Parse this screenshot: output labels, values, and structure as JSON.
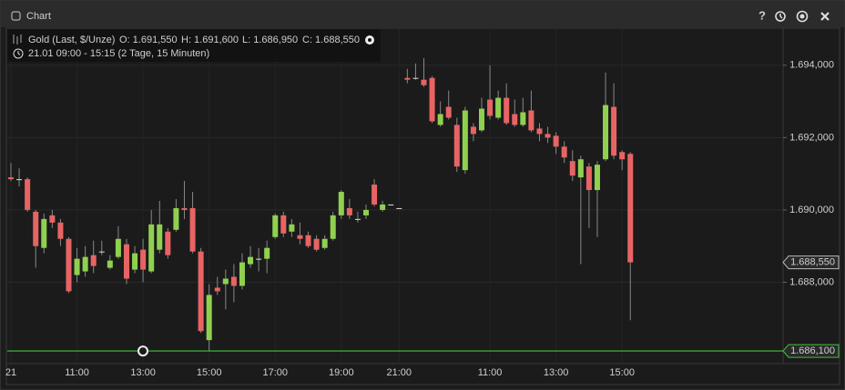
{
  "window": {
    "title": "Chart",
    "help": "?"
  },
  "chart_data": {
    "type": "candlestick",
    "instrument": "Gold (Last, $/Unze)",
    "ohlc": [
      "O: 1.691,550",
      "H: 1.691,600",
      "L: 1.686,950",
      "C: 1.688,550"
    ],
    "range": "21.01 09:00 - 15:15 (2 Tage, 15 Minuten)",
    "categories": [
      "21",
      null,
      null,
      null,
      null,
      null,
      null,
      null,
      "11:00",
      null,
      null,
      null,
      null,
      null,
      null,
      null,
      "13:00",
      null,
      null,
      null,
      null,
      null,
      null,
      null,
      "15:00",
      null,
      null,
      null,
      null,
      null,
      null,
      null,
      "17:00",
      null,
      null,
      null,
      null,
      null,
      null,
      null,
      "19:00",
      null,
      null,
      null,
      null,
      null,
      null,
      "21:00",
      null,
      null,
      null,
      null,
      null,
      null,
      null,
      null,
      null,
      null,
      "11:00",
      null,
      null,
      null,
      null,
      null,
      null,
      null,
      "13:00",
      null,
      null,
      null,
      null,
      null,
      null,
      null,
      "15:00",
      null
    ],
    "open": [
      1690.9,
      1690.85,
      1690.85,
      1689.95,
      1688.95,
      1689.85,
      1689.65,
      1689.2,
      1688.2,
      1688.3,
      1688.75,
      1688.85,
      1688.4,
      1688.7,
      1689.05,
      1688.35,
      1688.9,
      1688.3,
      1688.9,
      1689.4,
      1689.45,
      1690.05,
      1690.05,
      1688.85,
      1686.4,
      1687.85,
      1687.95,
      1688.15,
      1687.9,
      1688.5,
      1688.65,
      1688.65,
      1689.25,
      1689.85,
      1689.4,
      1689.3,
      1689.3,
      1689.2,
      1688.95,
      1689.2,
      1689.85,
      1690.05,
      1689.75,
      1689.85,
      1690.7,
      1690.0,
      1690.15,
      1690.05,
      1693.65,
      1693.65,
      1693.6,
      1693.65,
      1692.35,
      1692.85,
      1692.35,
      1691.1,
      1692.3,
      1692.2,
      1693.05,
      1692.55,
      1693.1,
      1692.65,
      1692.35,
      1692.75,
      1692.25,
      1692.1,
      1692.05,
      1691.75,
      1691.35,
      1690.9,
      1691.2,
      1690.55,
      1691.4,
      1692.85,
      1691.6,
      1691.55
    ],
    "high": [
      1691.3,
      1691.15,
      1690.9,
      1690.0,
      1689.9,
      1690.0,
      1689.75,
      1689.25,
      1688.95,
      1689.0,
      1689.15,
      1689.15,
      1688.75,
      1689.55,
      1689.2,
      1689.0,
      1689.2,
      1690.0,
      1690.25,
      1689.5,
      1690.3,
      1690.8,
      1690.5,
      1688.95,
      1687.95,
      1688.15,
      1688.35,
      1688.5,
      1688.8,
      1689.0,
      1688.95,
      1689.15,
      1689.9,
      1689.95,
      1689.75,
      1689.65,
      1689.4,
      1689.3,
      1689.3,
      1689.95,
      1690.55,
      1690.3,
      1689.95,
      1690.15,
      1690.85,
      1690.25,
      1690.15,
      1690.05,
      1693.9,
      1694.05,
      1694.2,
      1693.7,
      1693.0,
      1693.3,
      1692.55,
      1692.85,
      1692.4,
      1693.1,
      1694.0,
      1693.3,
      1693.5,
      1693.05,
      1693.1,
      1693.3,
      1692.4,
      1692.3,
      1692.15,
      1691.9,
      1691.65,
      1691.5,
      1691.3,
      1691.35,
      1693.8,
      1693.5,
      1691.65,
      1691.6
    ],
    "low": [
      1690.8,
      1690.65,
      1689.95,
      1688.4,
      1688.8,
      1689.5,
      1689.0,
      1687.7,
      1688.0,
      1688.15,
      1688.25,
      1688.75,
      1688.35,
      1688.65,
      1687.95,
      1688.25,
      1688.0,
      1688.25,
      1688.8,
      1688.65,
      1689.4,
      1689.75,
      1688.8,
      1686.6,
      1686.1,
      1687.65,
      1687.25,
      1687.45,
      1687.8,
      1688.4,
      1688.3,
      1688.25,
      1689.2,
      1689.25,
      1689.25,
      1689.05,
      1688.95,
      1688.85,
      1688.9,
      1689.15,
      1689.75,
      1689.75,
      1689.65,
      1689.75,
      1690.1,
      1689.95,
      1690.15,
      1690.05,
      1693.5,
      1693.6,
      1693.4,
      1692.4,
      1692.3,
      1692.5,
      1691.05,
      1691.0,
      1691.9,
      1692.15,
      1692.5,
      1692.5,
      1692.35,
      1692.3,
      1692.3,
      1692.15,
      1691.9,
      1691.85,
      1691.55,
      1691.3,
      1690.8,
      1688.5,
      1689.5,
      1689.25,
      1691.35,
      1691.4,
      1691.1,
      1686.95
    ],
    "close": [
      1690.85,
      1690.85,
      1690.0,
      1689.0,
      1689.75,
      1689.65,
      1689.2,
      1687.75,
      1688.65,
      1688.7,
      1688.45,
      1688.85,
      1688.6,
      1689.2,
      1688.1,
      1688.8,
      1688.35,
      1689.6,
      1689.6,
      1688.75,
      1690.05,
      1690.0,
      1688.85,
      1686.65,
      1687.65,
      1687.75,
      1688.1,
      1687.9,
      1688.55,
      1688.7,
      1688.65,
      1688.95,
      1689.85,
      1689.35,
      1689.6,
      1689.2,
      1689.0,
      1688.9,
      1689.2,
      1689.85,
      1690.5,
      1689.85,
      1689.75,
      1690.0,
      1690.15,
      1690.15,
      1690.15,
      1690.05,
      1693.6,
      1693.65,
      1693.45,
      1692.45,
      1692.65,
      1692.55,
      1691.2,
      1692.75,
      1692.1,
      1692.8,
      1692.6,
      1693.1,
      1692.4,
      1692.35,
      1692.7,
      1692.2,
      1692.1,
      1692.0,
      1691.75,
      1691.45,
      1690.95,
      1691.4,
      1690.55,
      1691.25,
      1692.9,
      1691.5,
      1691.4,
      1688.55
    ],
    "up_color": "#8fd14f",
    "down_color": "#e86464",
    "doji_color": "#dddddd",
    "ylim": [
      1685.75,
      1695.0
    ],
    "yticks": [
      {
        "value": 1688,
        "label": "1.688,000"
      },
      {
        "value": 1690,
        "label": "1.690,000"
      },
      {
        "value": 1692,
        "label": "1.692,000"
      },
      {
        "value": 1694,
        "label": "1.694,000"
      }
    ],
    "grid": true,
    "last_price": {
      "value": 1688.55,
      "label": "1.688,550"
    },
    "hline": {
      "value": 1686.1,
      "label": "1.686,100",
      "color": "#3cc63c"
    }
  }
}
